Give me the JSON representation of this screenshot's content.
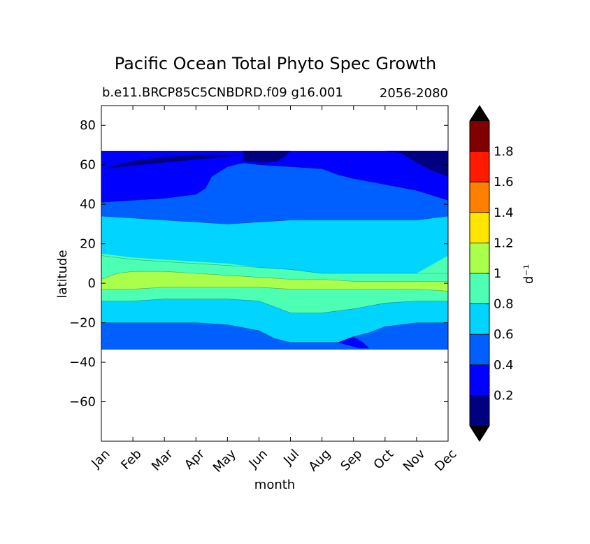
{
  "title": "Pacific Ocean Total Phyto Spec Growth",
  "subtitle_left": "b.e11.BRCP85C5CNBDRD.f09 g16.001",
  "subtitle_right": "2056-2080",
  "chart_data": {
    "type": "heatmap",
    "subtype": "filled-contour",
    "title": "Pacific Ocean Total Phyto Spec Growth",
    "subtitle": "b.e11.BRCP85C5CNBDRD.f09 g16.001",
    "period": "2056-2080",
    "xlabel": "month",
    "ylabel": "latitude",
    "x_ticks": [
      "Jan",
      "Feb",
      "Mar",
      "Apr",
      "May",
      "Jun",
      "Jul",
      "Aug",
      "Sep",
      "Oct",
      "Nov",
      "Dec"
    ],
    "xlim": [
      1,
      12
    ],
    "ylim": [
      -80,
      90
    ],
    "y_ticks": [
      80,
      60,
      40,
      20,
      0,
      -20,
      -40,
      -60
    ],
    "y_tick_labels": [
      "80",
      "60",
      "40",
      "20",
      "0",
      "−20",
      "−40",
      "−60"
    ],
    "data_lat_range": [
      -33.5,
      67
    ],
    "colorbar": {
      "label": "d⁻¹",
      "levels": [
        0,
        0.2,
        0.4,
        0.6,
        0.8,
        1.0,
        1.2,
        1.4,
        1.6,
        1.8,
        2.0
      ],
      "tick_values": [
        0.2,
        0.4,
        0.6,
        0.8,
        1.0,
        1.2,
        1.4,
        1.6,
        1.8
      ],
      "tick_labels": [
        "0.2",
        "0.4",
        "0.6",
        "0.8",
        "1",
        "1.2",
        "1.4",
        "1.6",
        "1.8"
      ],
      "colors": [
        "#000080",
        "#0000ff",
        "#0060ff",
        "#00d4ff",
        "#4dffb3",
        "#aaff4d",
        "#ffe500",
        "#ff7f00",
        "#ff1a00",
        "#800000"
      ],
      "extend": "both",
      "under_color": "#000000",
      "over_color": "#000000"
    },
    "boundaries": {
      "b1": [
        [
          1,
          58
        ],
        [
          2,
          62
        ],
        [
          3,
          64
        ],
        [
          4,
          65
        ],
        [
          5,
          65
        ],
        [
          5.5,
          65
        ],
        [
          5.5,
          67
        ],
        [
          12,
          67
        ],
        [
          12,
          54
        ],
        [
          11.5,
          57
        ],
        [
          11,
          61
        ],
        [
          10.5,
          66
        ],
        [
          10,
          67
        ],
        [
          7,
          67
        ],
        [
          6.8,
          64
        ],
        [
          6.6,
          62
        ],
        [
          6.2,
          61
        ],
        [
          5.5,
          62
        ],
        [
          5.5,
          65
        ]
      ],
      "b2_top": [
        [
          1,
          41
        ],
        [
          2,
          42
        ],
        [
          3,
          43
        ],
        [
          4,
          45
        ],
        [
          4.3,
          48
        ],
        [
          4.5,
          54
        ],
        [
          5,
          59
        ],
        [
          5.5,
          61
        ],
        [
          6,
          60
        ],
        [
          7,
          59
        ],
        [
          8,
          58
        ],
        [
          8.5,
          55
        ],
        [
          9,
          53
        ],
        [
          10,
          50
        ],
        [
          11,
          47
        ],
        [
          12,
          42
        ]
      ],
      "b3_top": [
        [
          1,
          34
        ],
        [
          2,
          33
        ],
        [
          3,
          32
        ],
        [
          4,
          31
        ],
        [
          5,
          30
        ],
        [
          6,
          31
        ],
        [
          7,
          32
        ],
        [
          8,
          32
        ],
        [
          9,
          32
        ],
        [
          10,
          32
        ],
        [
          11,
          32
        ],
        [
          12,
          34
        ]
      ],
      "b3_bot": [
        [
          1,
          14
        ],
        [
          2,
          12
        ],
        [
          3,
          11
        ],
        [
          4,
          10
        ],
        [
          5,
          9
        ],
        [
          6,
          8
        ],
        [
          7,
          7
        ],
        [
          8,
          5
        ],
        [
          9,
          5
        ],
        [
          10,
          5
        ],
        [
          11,
          5
        ],
        [
          12,
          5
        ]
      ],
      "b4_top": [
        [
          1,
          15
        ],
        [
          2,
          13
        ],
        [
          3,
          12
        ],
        [
          4,
          11
        ],
        [
          5,
          10
        ],
        [
          6,
          8
        ],
        [
          7,
          7
        ],
        [
          8,
          5
        ],
        [
          9,
          5
        ],
        [
          10,
          5
        ],
        [
          11,
          5
        ],
        [
          12,
          14
        ]
      ],
      "b5_top": [
        [
          1,
          2
        ],
        [
          1.5,
          5
        ],
        [
          2,
          6
        ],
        [
          3,
          6
        ],
        [
          4,
          5
        ],
        [
          5,
          4
        ],
        [
          6,
          3
        ],
        [
          7,
          2
        ],
        [
          8,
          2
        ],
        [
          9,
          1
        ],
        [
          10,
          1
        ],
        [
          11,
          1
        ],
        [
          12,
          1
        ]
      ],
      "b5_bot": [
        [
          1,
          -3
        ],
        [
          2,
          -3
        ],
        [
          3,
          -2
        ],
        [
          4,
          -2
        ],
        [
          5,
          -2
        ],
        [
          6,
          -2
        ],
        [
          7,
          -3
        ],
        [
          8,
          -3
        ],
        [
          9,
          -3
        ],
        [
          10,
          -3
        ],
        [
          11,
          -3
        ],
        [
          12,
          -4
        ]
      ],
      "b6_bot": [
        [
          1,
          -9
        ],
        [
          2,
          -9
        ],
        [
          3,
          -8
        ],
        [
          4,
          -8
        ],
        [
          5,
          -8
        ],
        [
          6,
          -9
        ],
        [
          6.5,
          -12
        ],
        [
          7,
          -15
        ],
        [
          8,
          -15
        ],
        [
          9,
          -13
        ],
        [
          10,
          -10
        ],
        [
          11,
          -9
        ],
        [
          12,
          -9
        ]
      ],
      "b7_bot": [
        [
          1,
          -20
        ],
        [
          2,
          -20
        ],
        [
          3,
          -20
        ],
        [
          4,
          -20
        ],
        [
          5,
          -21
        ],
        [
          6,
          -24
        ],
        [
          6.5,
          -28
        ],
        [
          7,
          -30
        ],
        [
          8,
          -30
        ],
        [
          8.5,
          -30
        ],
        [
          9,
          -27
        ],
        [
          9.5,
          -25
        ],
        [
          10,
          -22
        ],
        [
          11,
          -20
        ],
        [
          12,
          -20
        ]
      ],
      "south_blue_pocket": [
        [
          8.5,
          -30
        ],
        [
          9.2,
          -33
        ],
        [
          9.5,
          -33
        ],
        [
          9.3,
          -30
        ],
        [
          9,
          -27
        ]
      ]
    }
  }
}
